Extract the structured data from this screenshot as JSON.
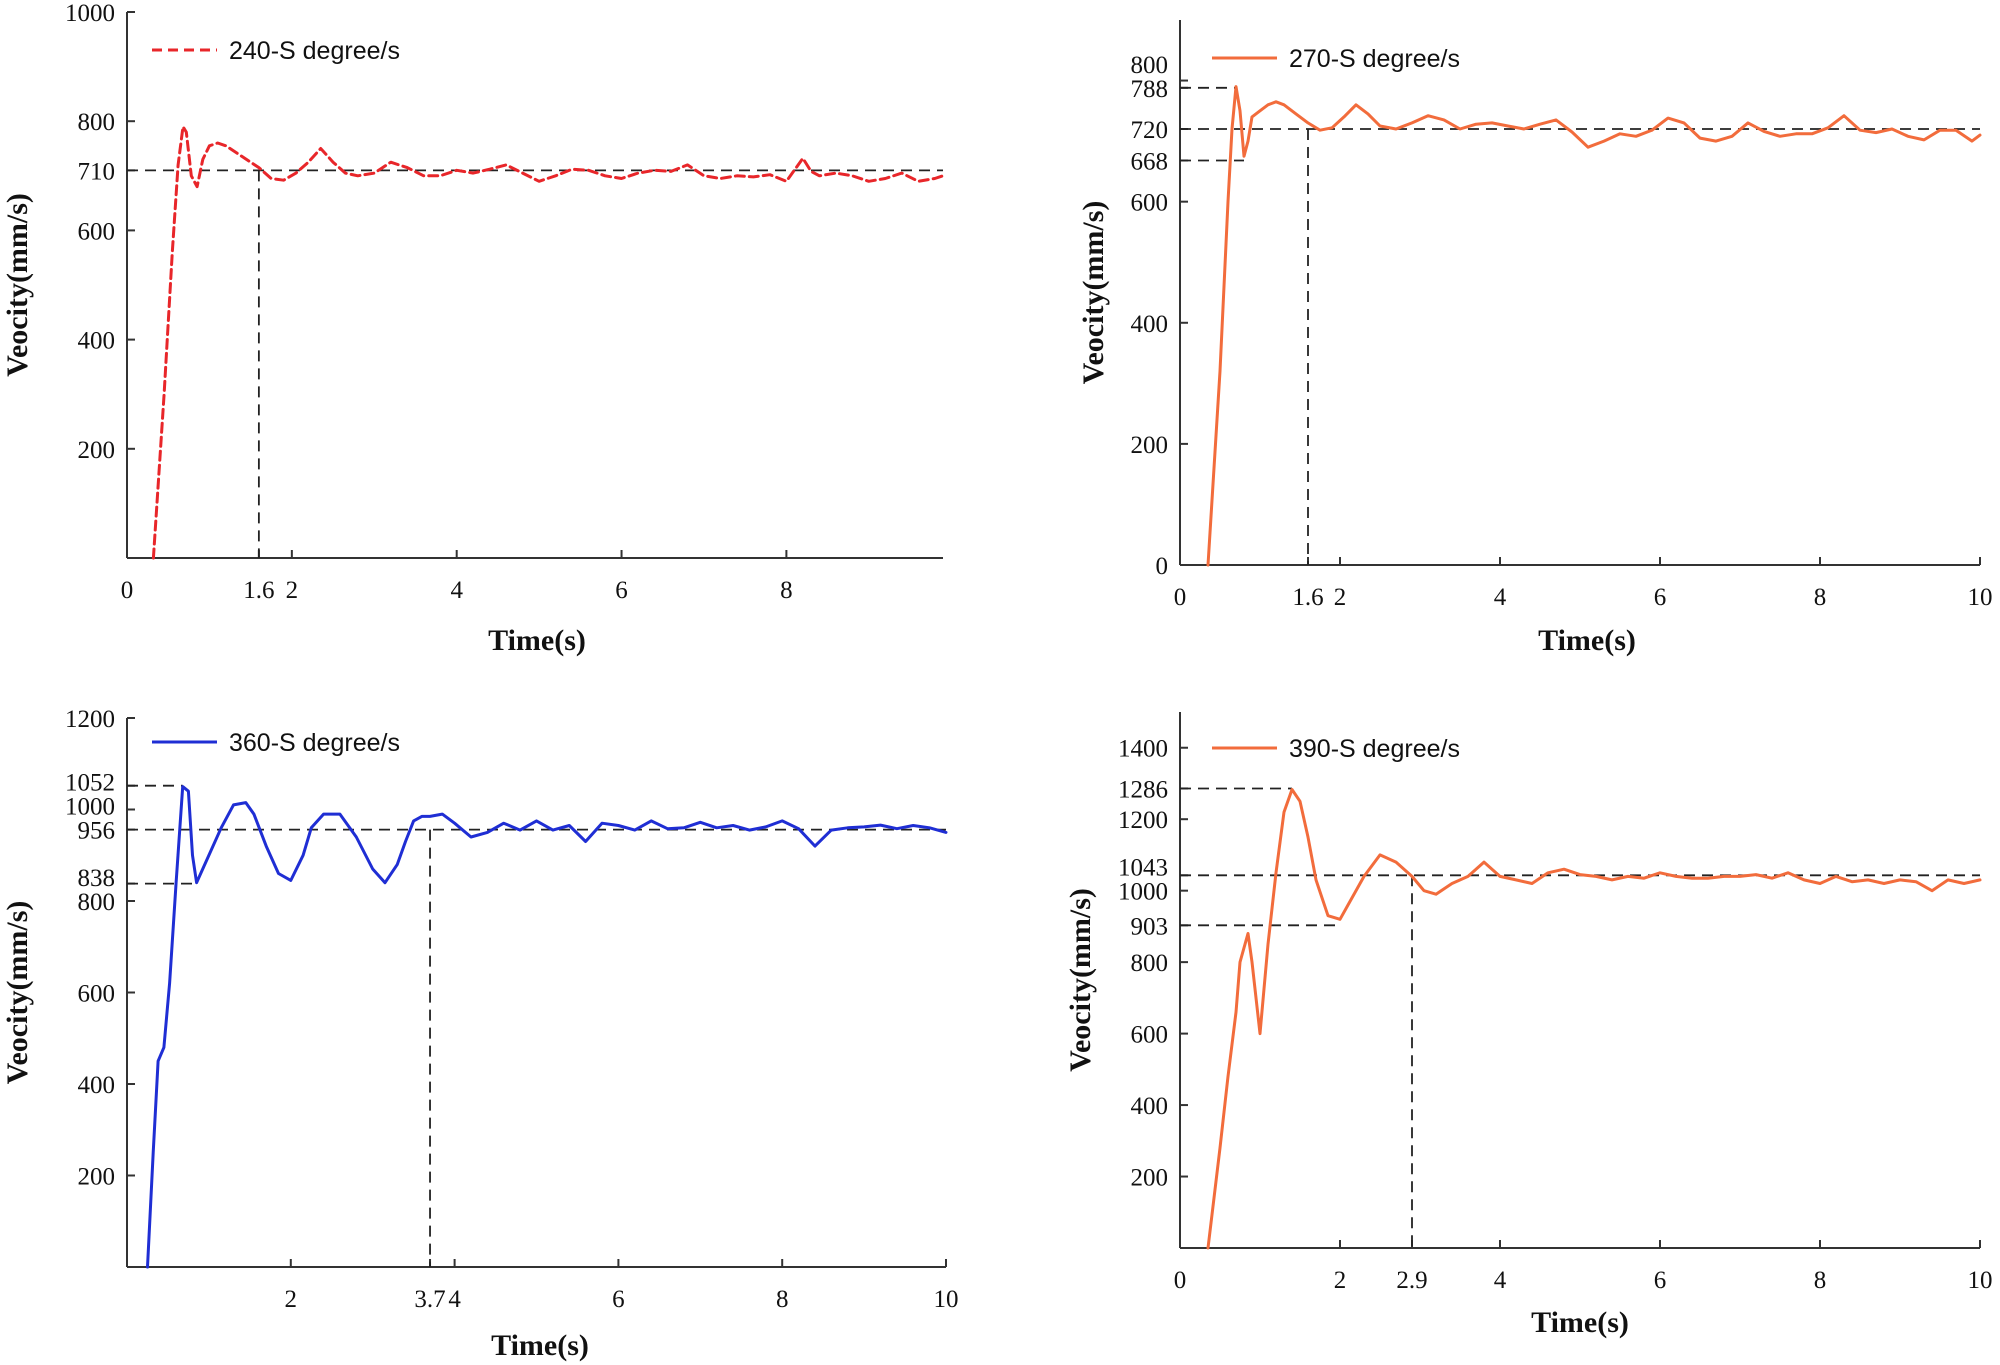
{
  "chart_data": [
    {
      "type": "line",
      "panel": "top-left",
      "legend_label": "240-S degree/s",
      "color": "#e8262a",
      "line_style": "dashed",
      "xlabel": "Time(s)",
      "ylabel": "Veocity(mm/s)",
      "xlim": [
        0,
        9.9
      ],
      "ylim": [
        0,
        1000
      ],
      "x_ticks": [
        "0",
        "1.6",
        "2",
        "4",
        "6",
        "8"
      ],
      "y_ticks": [
        "200",
        "400",
        "600",
        "710",
        "800",
        "1000"
      ],
      "steady_state": 710,
      "settling_time": 1.6,
      "series": [
        {
          "name": "240-S degree/s",
          "x": [
            0.32,
            0.45,
            0.55,
            0.62,
            0.68,
            0.72,
            0.78,
            0.85,
            0.92,
            1.0,
            1.1,
            1.2,
            1.35,
            1.5,
            1.6,
            1.75,
            1.9,
            2.05,
            2.2,
            2.35,
            2.5,
            2.65,
            2.8,
            3.0,
            3.2,
            3.4,
            3.6,
            3.8,
            4.0,
            4.2,
            4.4,
            4.6,
            4.8,
            5.0,
            5.2,
            5.4,
            5.6,
            5.8,
            6.0,
            6.2,
            6.4,
            6.6,
            6.8,
            7.0,
            7.2,
            7.4,
            7.6,
            7.8,
            8.0,
            8.2,
            8.3,
            8.4,
            8.6,
            8.8,
            9.0,
            9.2,
            9.4,
            9.6,
            9.8,
            9.9
          ],
          "values": [
            0,
            300,
            560,
            720,
            790,
            780,
            700,
            680,
            730,
            755,
            760,
            755,
            740,
            725,
            715,
            695,
            692,
            705,
            725,
            750,
            725,
            705,
            700,
            705,
            725,
            715,
            700,
            700,
            710,
            705,
            712,
            720,
            705,
            690,
            700,
            712,
            710,
            700,
            695,
            705,
            710,
            708,
            720,
            700,
            695,
            700,
            698,
            702,
            690,
            732,
            708,
            700,
            705,
            700,
            690,
            695,
            705,
            690,
            695,
            700
          ]
        }
      ]
    },
    {
      "type": "line",
      "panel": "top-right",
      "legend_label": "270-S degree/s",
      "color": "#f26c3c",
      "line_style": "solid",
      "xlabel": "Time(s)",
      "ylabel": "Veocity(mm/s)",
      "xlim": [
        0,
        10
      ],
      "ylim": [
        0,
        900
      ],
      "x_ticks": [
        "0",
        "1.6",
        "2",
        "4",
        "6",
        "8",
        "10"
      ],
      "y_ticks": [
        "0",
        "200",
        "400",
        "600",
        "668",
        "720",
        "788",
        "800"
      ],
      "steady_state": 720,
      "peak": 788,
      "undershoot": 668,
      "settling_time": 1.6,
      "series": [
        {
          "name": "270-S degree/s",
          "x": [
            0.35,
            0.5,
            0.6,
            0.65,
            0.7,
            0.75,
            0.8,
            0.85,
            0.9,
            1.0,
            1.1,
            1.2,
            1.3,
            1.45,
            1.6,
            1.75,
            1.9,
            2.05,
            2.2,
            2.35,
            2.5,
            2.7,
            2.9,
            3.1,
            3.3,
            3.5,
            3.7,
            3.9,
            4.1,
            4.3,
            4.5,
            4.7,
            4.9,
            5.1,
            5.3,
            5.5,
            5.7,
            5.9,
            6.1,
            6.3,
            6.5,
            6.7,
            6.9,
            7.1,
            7.3,
            7.5,
            7.7,
            7.9,
            8.1,
            8.3,
            8.5,
            8.7,
            8.9,
            9.1,
            9.3,
            9.5,
            9.7,
            9.9,
            10.0
          ],
          "values": [
            0,
            320,
            600,
            720,
            790,
            750,
            675,
            700,
            740,
            750,
            760,
            765,
            760,
            745,
            730,
            718,
            722,
            740,
            760,
            745,
            725,
            720,
            730,
            742,
            735,
            720,
            728,
            730,
            725,
            720,
            728,
            735,
            715,
            690,
            700,
            712,
            708,
            718,
            738,
            730,
            705,
            700,
            708,
            730,
            716,
            708,
            712,
            712,
            722,
            742,
            718,
            714,
            720,
            708,
            702,
            718,
            718,
            700,
            710
          ]
        }
      ]
    },
    {
      "type": "line",
      "panel": "bottom-left",
      "legend_label": "360-S degree/s",
      "color": "#1f2ed4",
      "line_style": "solid",
      "xlabel": "Time(s)",
      "ylabel": "Veocity(mm/s)",
      "xlim": [
        0,
        10
      ],
      "ylim": [
        0,
        1200
      ],
      "x_ticks": [
        "2",
        "3.7",
        "4",
        "6",
        "8",
        "10"
      ],
      "y_ticks": [
        "200",
        "400",
        "600",
        "800",
        "838",
        "956",
        "1000",
        "1052",
        "1200"
      ],
      "steady_state": 956,
      "peak": 1052,
      "undershoot": 838,
      "settling_time": 3.7,
      "series": [
        {
          "name": "360-S degree/s",
          "x": [
            0.25,
            0.32,
            0.38,
            0.45,
            0.52,
            0.6,
            0.68,
            0.75,
            0.8,
            0.85,
            0.9,
            1.0,
            1.15,
            1.3,
            1.45,
            1.55,
            1.7,
            1.85,
            2.0,
            2.15,
            2.25,
            2.4,
            2.6,
            2.8,
            3.0,
            3.15,
            3.3,
            3.4,
            3.5,
            3.6,
            3.7,
            3.85,
            4.0,
            4.2,
            4.4,
            4.6,
            4.8,
            5.0,
            5.2,
            5.4,
            5.6,
            5.8,
            6.0,
            6.2,
            6.4,
            6.6,
            6.8,
            7.0,
            7.2,
            7.4,
            7.6,
            7.8,
            8.0,
            8.2,
            8.4,
            8.6,
            8.8,
            9.0,
            9.2,
            9.4,
            9.6,
            9.8,
            10.0
          ],
          "values": [
            0,
            250,
            450,
            480,
            620,
            840,
            1050,
            1040,
            900,
            840,
            860,
            900,
            960,
            1010,
            1015,
            990,
            920,
            860,
            845,
            900,
            960,
            990,
            990,
            940,
            870,
            840,
            880,
            930,
            975,
            985,
            985,
            990,
            970,
            940,
            950,
            970,
            955,
            975,
            955,
            965,
            930,
            970,
            965,
            955,
            975,
            958,
            960,
            972,
            960,
            965,
            955,
            962,
            975,
            958,
            920,
            955,
            960,
            962,
            966,
            958,
            965,
            960,
            950
          ]
        }
      ]
    },
    {
      "type": "line",
      "panel": "bottom-right",
      "legend_label": "390-S degree/s",
      "color": "#f26c3c",
      "line_style": "solid",
      "xlabel": "Time(s)",
      "ylabel": "Veocity(mm/s)",
      "xlim": [
        0,
        10
      ],
      "ylim": [
        0,
        1500
      ],
      "x_ticks": [
        "0",
        "2",
        "2.9",
        "4",
        "6",
        "8",
        "10"
      ],
      "y_ticks": [
        "200",
        "400",
        "600",
        "800",
        "903",
        "1000",
        "1043",
        "1200",
        "1286",
        "1400"
      ],
      "steady_state": 1043,
      "peak": 1286,
      "undershoot": 903,
      "settling_time": 2.9,
      "series": [
        {
          "name": "390-S degree/s",
          "x": [
            0.35,
            0.5,
            0.6,
            0.7,
            0.75,
            0.85,
            0.9,
            1.0,
            1.1,
            1.2,
            1.3,
            1.4,
            1.5,
            1.6,
            1.7,
            1.85,
            2.0,
            2.1,
            2.3,
            2.5,
            2.7,
            2.9,
            3.05,
            3.2,
            3.4,
            3.6,
            3.8,
            4.0,
            4.2,
            4.4,
            4.6,
            4.8,
            5.0,
            5.2,
            5.4,
            5.6,
            5.8,
            6.0,
            6.2,
            6.4,
            6.6,
            6.8,
            7.0,
            7.2,
            7.4,
            7.6,
            7.8,
            8.0,
            8.2,
            8.4,
            8.6,
            8.8,
            9.0,
            9.2,
            9.4,
            9.6,
            9.8,
            10.0
          ],
          "values": [
            0,
            280,
            480,
            660,
            800,
            880,
            800,
            600,
            850,
            1050,
            1220,
            1283,
            1250,
            1150,
            1030,
            930,
            920,
            960,
            1040,
            1100,
            1080,
            1040,
            1000,
            990,
            1020,
            1040,
            1080,
            1040,
            1030,
            1020,
            1050,
            1060,
            1045,
            1040,
            1030,
            1040,
            1035,
            1050,
            1040,
            1035,
            1035,
            1040,
            1040,
            1045,
            1035,
            1050,
            1030,
            1020,
            1040,
            1025,
            1030,
            1020,
            1030,
            1025,
            1000,
            1030,
            1020,
            1030
          ]
        }
      ]
    }
  ]
}
